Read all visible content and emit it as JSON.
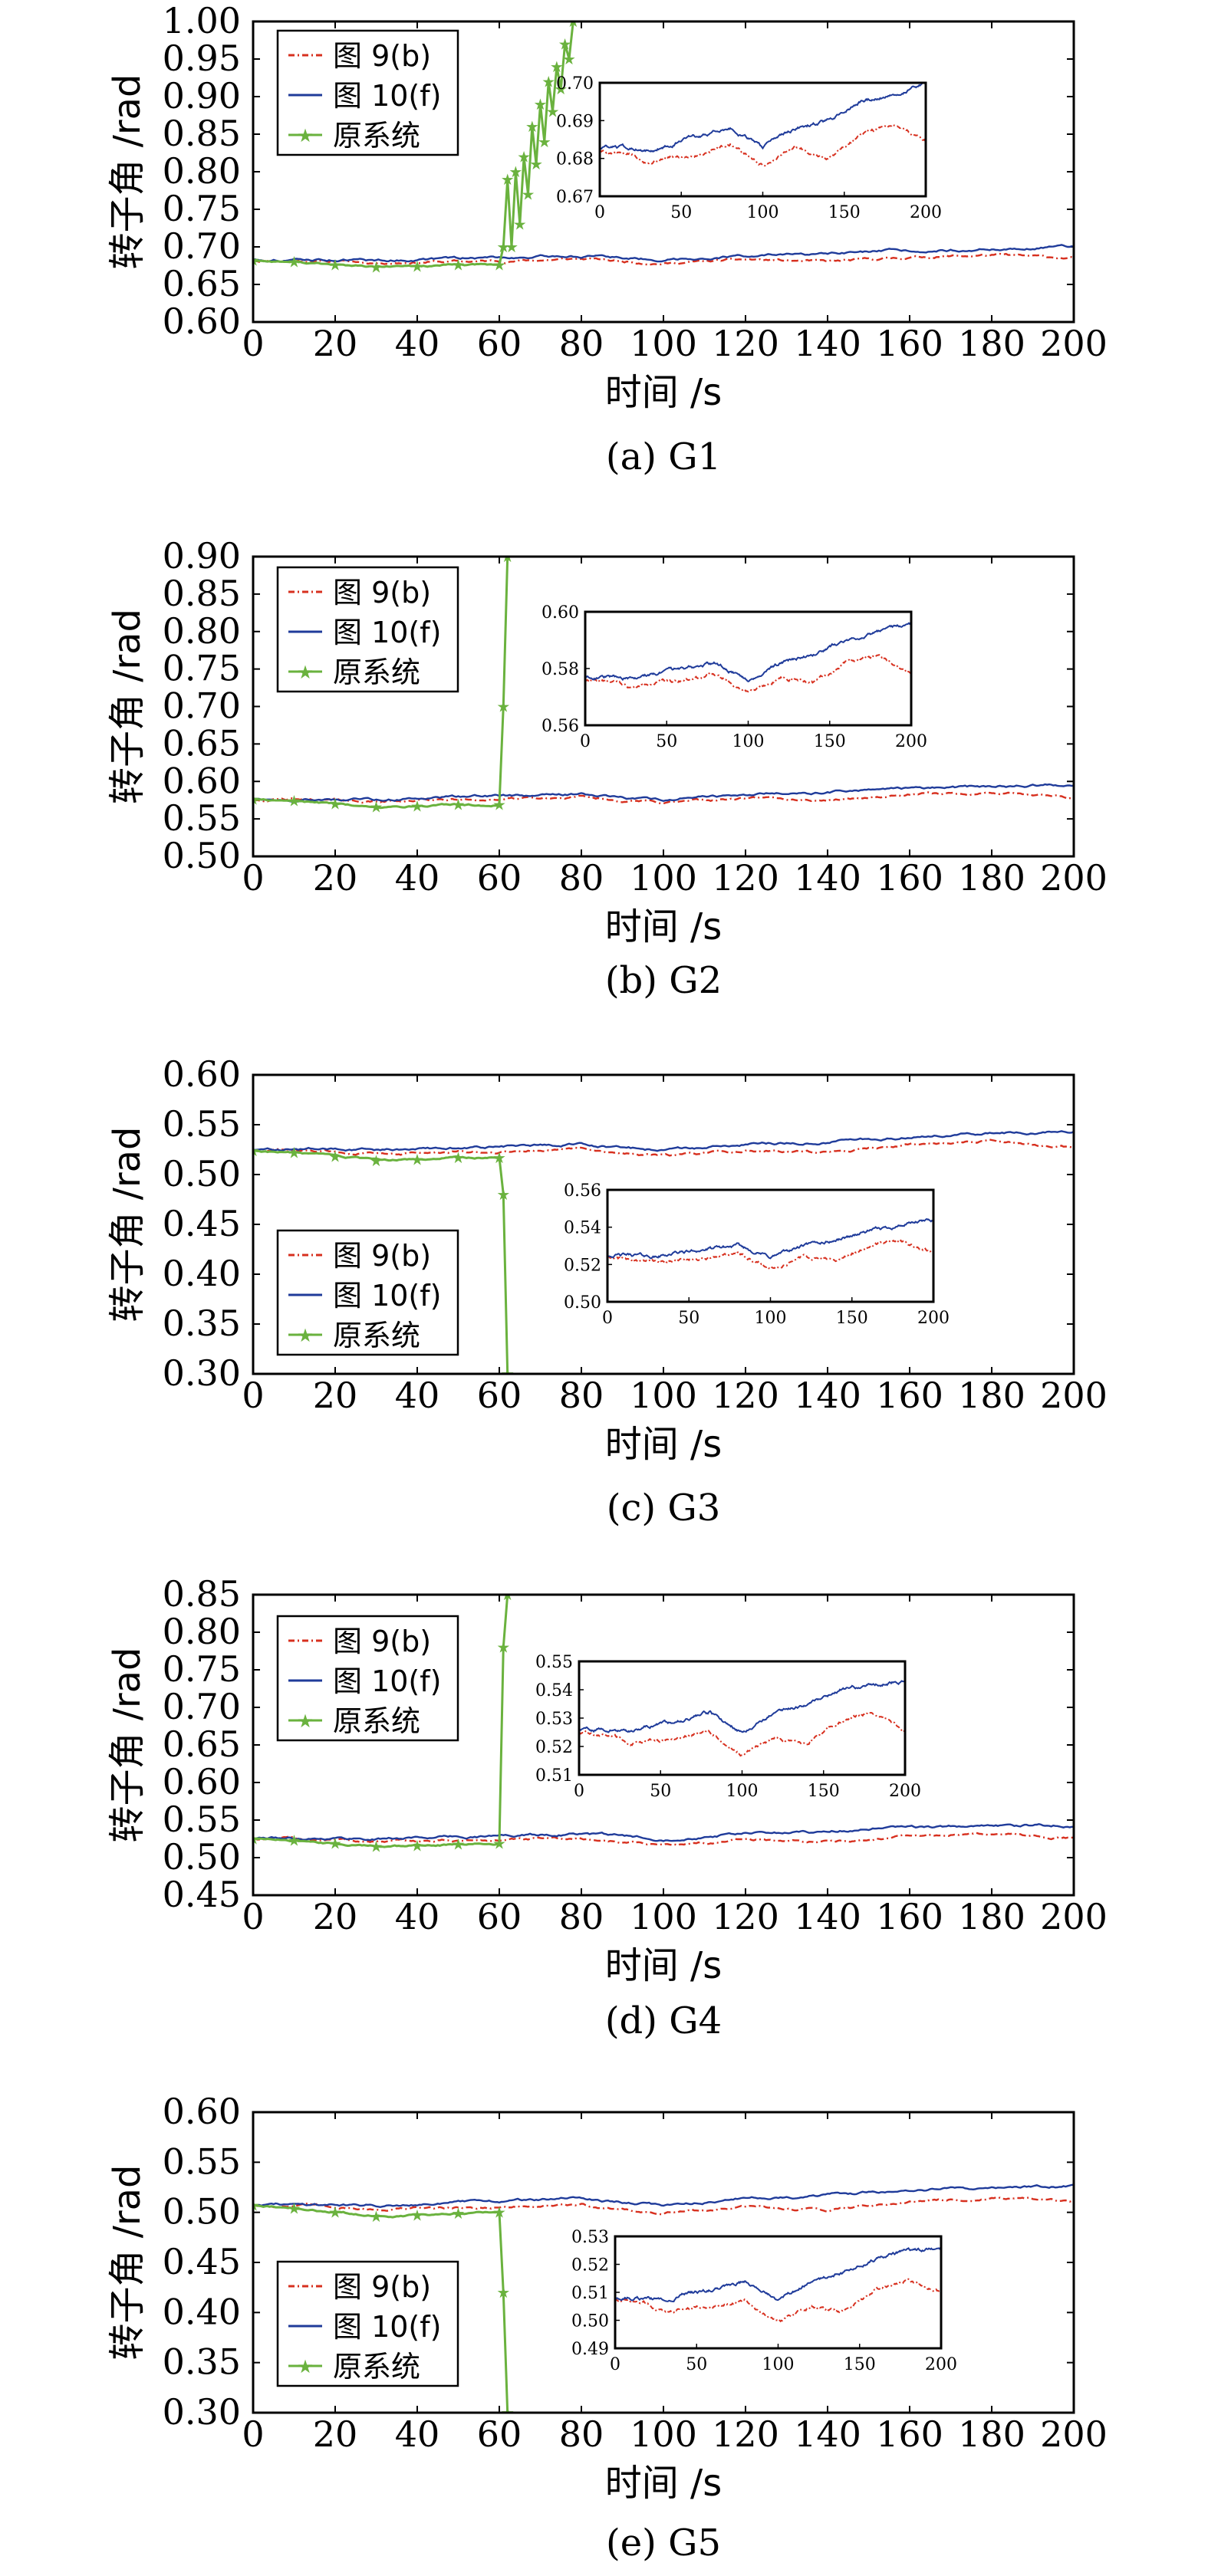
{
  "chart_data": [
    {
      "type": "line",
      "caption": "(a) G1",
      "xlabel": "时间 /s",
      "ylabel": "转子角 /rad",
      "xlim": [
        0,
        200
      ],
      "ylim": [
        0.6,
        1.0
      ],
      "xticks": [
        "0",
        "20",
        "40",
        "60",
        "80",
        "100",
        "120",
        "140",
        "160",
        "180",
        "200"
      ],
      "yticks": [
        "0.60",
        "0.65",
        "0.70",
        "0.75",
        "0.80",
        "0.85",
        "0.90",
        "0.95",
        "1.00"
      ],
      "legend_position": "top-left",
      "series": [
        {
          "name": "图 9(b)",
          "style": "dash-dot",
          "color": "#d7301f",
          "x": [
            0,
            20,
            30,
            40,
            60,
            80,
            100,
            120,
            140,
            160,
            180,
            200
          ],
          "y": [
            0.682,
            0.681,
            0.679,
            0.68,
            0.681,
            0.684,
            0.678,
            0.683,
            0.68,
            0.686,
            0.689,
            0.685
          ]
        },
        {
          "name": "图 10(f)",
          "style": "solid",
          "color": "#1f3b9a",
          "x": [
            0,
            20,
            30,
            40,
            60,
            80,
            100,
            120,
            140,
            160,
            180,
            200
          ],
          "y": [
            0.683,
            0.683,
            0.682,
            0.683,
            0.686,
            0.688,
            0.683,
            0.688,
            0.69,
            0.695,
            0.697,
            0.7
          ]
        },
        {
          "name": "原系统",
          "style": "solid-star",
          "color": "#6ab23e",
          "x": [
            0,
            10,
            20,
            30,
            40,
            50,
            60,
            61,
            62,
            63,
            64,
            65,
            66,
            67,
            68,
            69,
            70,
            71,
            72,
            73,
            74,
            75,
            76,
            77,
            78
          ],
          "y": [
            0.682,
            0.68,
            0.676,
            0.673,
            0.674,
            0.676,
            0.676,
            0.7,
            0.79,
            0.7,
            0.8,
            0.73,
            0.82,
            0.77,
            0.86,
            0.81,
            0.89,
            0.84,
            0.92,
            0.88,
            0.94,
            0.91,
            0.97,
            0.95,
            1.0
          ]
        }
      ],
      "inset": {
        "xlim": [
          0,
          200
        ],
        "ylim": [
          0.67,
          0.7
        ],
        "xticks": [
          "0",
          "50",
          "100",
          "150",
          "200"
        ],
        "yticks": [
          "0.67",
          "0.68",
          "0.69",
          "0.70"
        ]
      }
    },
    {
      "type": "line",
      "caption": "(b) G2",
      "xlabel": "时间 /s",
      "ylabel": "转子角 /rad",
      "xlim": [
        0,
        200
      ],
      "ylim": [
        0.5,
        0.9
      ],
      "xticks": [
        "0",
        "20",
        "40",
        "60",
        "80",
        "100",
        "120",
        "140",
        "160",
        "180",
        "200"
      ],
      "yticks": [
        "0.50",
        "0.55",
        "0.60",
        "0.65",
        "0.70",
        "0.75",
        "0.80",
        "0.85",
        "0.90"
      ],
      "legend_position": "top-left",
      "series": [
        {
          "name": "图 9(b)",
          "style": "dash-dot",
          "color": "#d7301f",
          "x": [
            0,
            20,
            30,
            40,
            60,
            80,
            100,
            120,
            140,
            160,
            180,
            200
          ],
          "y": [
            0.576,
            0.575,
            0.573,
            0.575,
            0.576,
            0.578,
            0.572,
            0.577,
            0.575,
            0.582,
            0.585,
            0.578
          ]
        },
        {
          "name": "图 10(f)",
          "style": "solid",
          "color": "#1f3b9a",
          "x": [
            0,
            20,
            30,
            40,
            60,
            80,
            100,
            120,
            140,
            160,
            180,
            200
          ],
          "y": [
            0.577,
            0.577,
            0.576,
            0.578,
            0.58,
            0.582,
            0.576,
            0.582,
            0.585,
            0.59,
            0.593,
            0.596
          ]
        },
        {
          "name": "原系统",
          "style": "solid-star",
          "color": "#6ab23e",
          "x": [
            0,
            10,
            20,
            30,
            40,
            50,
            60,
            61,
            62
          ],
          "y": [
            0.576,
            0.574,
            0.57,
            0.566,
            0.567,
            0.569,
            0.569,
            0.7,
            0.9
          ]
        }
      ],
      "inset": {
        "xlim": [
          0,
          200
        ],
        "ylim": [
          0.56,
          0.6
        ],
        "xticks": [
          "0",
          "50",
          "100",
          "150",
          "200"
        ],
        "yticks": [
          "0.56",
          "0.58",
          "0.60"
        ]
      }
    },
    {
      "type": "line",
      "caption": "(c) G3",
      "xlabel": "时间 /s",
      "ylabel": "转子角 /rad",
      "xlim": [
        0,
        200
      ],
      "ylim": [
        0.3,
        0.6
      ],
      "xticks": [
        "0",
        "20",
        "40",
        "60",
        "80",
        "100",
        "120",
        "140",
        "160",
        "180",
        "200"
      ],
      "yticks": [
        "0.30",
        "0.35",
        "0.40",
        "0.45",
        "0.50",
        "0.55",
        "0.60"
      ],
      "legend_position": "bottom-left",
      "series": [
        {
          "name": "图 9(b)",
          "style": "dash-dot",
          "color": "#d7301f",
          "x": [
            0,
            20,
            30,
            40,
            60,
            80,
            100,
            120,
            140,
            160,
            180,
            200
          ],
          "y": [
            0.524,
            0.523,
            0.521,
            0.522,
            0.523,
            0.526,
            0.518,
            0.524,
            0.522,
            0.53,
            0.533,
            0.527
          ]
        },
        {
          "name": "图 10(f)",
          "style": "solid",
          "color": "#1f3b9a",
          "x": [
            0,
            20,
            30,
            40,
            60,
            80,
            100,
            120,
            140,
            160,
            180,
            200
          ],
          "y": [
            0.525,
            0.525,
            0.524,
            0.526,
            0.528,
            0.53,
            0.524,
            0.53,
            0.533,
            0.538,
            0.541,
            0.544
          ]
        },
        {
          "name": "原系统",
          "style": "solid-star",
          "color": "#6ab23e",
          "x": [
            0,
            10,
            20,
            30,
            40,
            50,
            60,
            61,
            62
          ],
          "y": [
            0.524,
            0.522,
            0.518,
            0.514,
            0.515,
            0.517,
            0.517,
            0.48,
            0.3
          ]
        }
      ],
      "inset": {
        "xlim": [
          0,
          200
        ],
        "ylim": [
          0.5,
          0.56
        ],
        "xticks": [
          "0",
          "50",
          "100",
          "150",
          "200"
        ],
        "yticks": [
          "0.50",
          "0.52",
          "0.54",
          "0.56"
        ]
      }
    },
    {
      "type": "line",
      "caption": "(d) G4",
      "xlabel": "时间 /s",
      "ylabel": "转子角 /rad",
      "xlim": [
        0,
        200
      ],
      "ylim": [
        0.45,
        0.85
      ],
      "xticks": [
        "0",
        "20",
        "40",
        "60",
        "80",
        "100",
        "120",
        "140",
        "160",
        "180",
        "200"
      ],
      "yticks": [
        "0.45",
        "0.50",
        "0.55",
        "0.60",
        "0.65",
        "0.70",
        "0.75",
        "0.80",
        "0.85"
      ],
      "legend_position": "top-left",
      "series": [
        {
          "name": "图 9(b)",
          "style": "dash-dot",
          "color": "#d7301f",
          "x": [
            0,
            20,
            30,
            40,
            60,
            80,
            100,
            120,
            140,
            160,
            180,
            200
          ],
          "y": [
            0.525,
            0.524,
            0.521,
            0.522,
            0.523,
            0.525,
            0.517,
            0.523,
            0.521,
            0.529,
            0.532,
            0.526
          ]
        },
        {
          "name": "图 10(f)",
          "style": "solid",
          "color": "#1f3b9a",
          "x": [
            0,
            20,
            30,
            40,
            60,
            80,
            100,
            120,
            140,
            160,
            180,
            200
          ],
          "y": [
            0.526,
            0.526,
            0.525,
            0.527,
            0.529,
            0.532,
            0.525,
            0.532,
            0.535,
            0.54,
            0.542,
            0.543
          ]
        },
        {
          "name": "原系统",
          "style": "solid-star",
          "color": "#6ab23e",
          "x": [
            0,
            10,
            20,
            30,
            40,
            50,
            60,
            61,
            62
          ],
          "y": [
            0.525,
            0.523,
            0.519,
            0.515,
            0.516,
            0.518,
            0.519,
            0.78,
            0.85
          ]
        }
      ],
      "inset": {
        "xlim": [
          0,
          200
        ],
        "ylim": [
          0.51,
          0.55
        ],
        "xticks": [
          "0",
          "50",
          "100",
          "150",
          "200"
        ],
        "yticks": [
          "0.51",
          "0.52",
          "0.53",
          "0.54",
          "0.55"
        ]
      }
    },
    {
      "type": "line",
      "caption": "(e) G5",
      "xlabel": "时间 /s",
      "ylabel": "转子角 /rad",
      "xlim": [
        0,
        200
      ],
      "ylim": [
        0.3,
        0.6
      ],
      "xticks": [
        "0",
        "20",
        "40",
        "60",
        "80",
        "100",
        "120",
        "140",
        "160",
        "180",
        "200"
      ],
      "yticks": [
        "0.30",
        "0.35",
        "0.40",
        "0.45",
        "0.50",
        "0.55",
        "0.60"
      ],
      "legend_position": "bottom-left",
      "series": [
        {
          "name": "图 9(b)",
          "style": "dash-dot",
          "color": "#d7301f",
          "x": [
            0,
            20,
            30,
            40,
            60,
            80,
            100,
            120,
            140,
            160,
            180,
            200
          ],
          "y": [
            0.507,
            0.506,
            0.503,
            0.504,
            0.505,
            0.507,
            0.499,
            0.505,
            0.503,
            0.511,
            0.514,
            0.51
          ]
        },
        {
          "name": "图 10(f)",
          "style": "solid",
          "color": "#1f3b9a",
          "x": [
            0,
            20,
            30,
            40,
            60,
            80,
            100,
            120,
            140,
            160,
            180,
            200
          ],
          "y": [
            0.508,
            0.508,
            0.507,
            0.509,
            0.511,
            0.514,
            0.507,
            0.514,
            0.517,
            0.522,
            0.525,
            0.526
          ]
        },
        {
          "name": "原系统",
          "style": "solid-star",
          "color": "#6ab23e",
          "x": [
            0,
            10,
            20,
            30,
            40,
            50,
            60,
            61,
            62
          ],
          "y": [
            0.507,
            0.504,
            0.5,
            0.496,
            0.497,
            0.499,
            0.5,
            0.42,
            0.3
          ]
        }
      ],
      "inset": {
        "xlim": [
          0,
          200
        ],
        "ylim": [
          0.49,
          0.53
        ],
        "xticks": [
          "0",
          "50",
          "100",
          "150",
          "200"
        ],
        "yticks": [
          "0.49",
          "0.50",
          "0.51",
          "0.52",
          "0.53"
        ]
      }
    }
  ]
}
